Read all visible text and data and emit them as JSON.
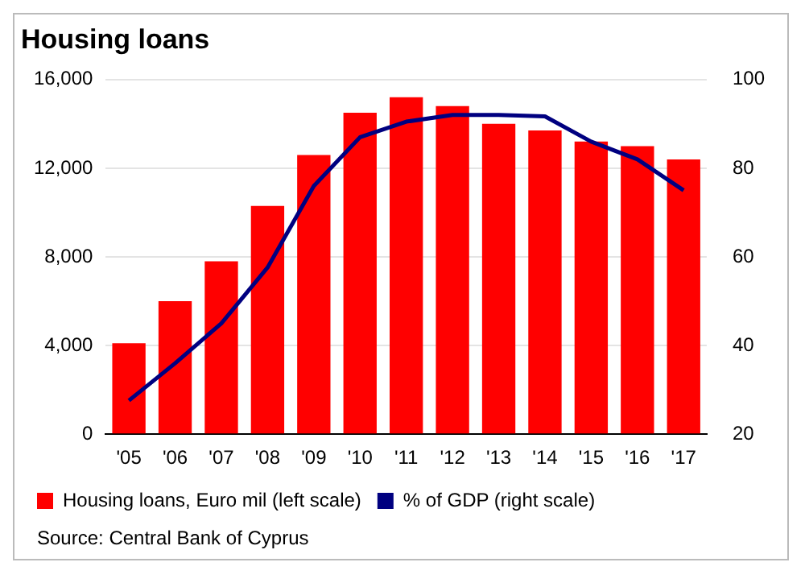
{
  "chart_data": {
    "type": "bar",
    "title": "Housing loans",
    "categories": [
      "'05",
      "'06",
      "'07",
      "'08",
      "'09",
      "'10",
      "'11",
      "'12",
      "'13",
      "'14",
      "'15",
      "'16",
      "'17"
    ],
    "series": [
      {
        "name": "Housing loans, Euro mil (left scale)",
        "color": "#ff0000",
        "values": [
          4100,
          6000,
          7800,
          10300,
          12600,
          14500,
          15200,
          14800,
          14000,
          13700,
          13200,
          13000,
          12400
        ]
      },
      {
        "name": "% of GDP (right scale)",
        "type": "line",
        "axis": "y2",
        "color": "#000080",
        "values": [
          27.6,
          36,
          45,
          57.6,
          76,
          87,
          90.5,
          92,
          92,
          91.7,
          86,
          82,
          75
        ]
      }
    ],
    "ylim": [
      0,
      16000
    ],
    "yticks": [
      {
        "value": 0,
        "label": "0"
      },
      {
        "value": 4000,
        "label": "4,000"
      },
      {
        "value": 8000,
        "label": "8,000"
      },
      {
        "value": 12000,
        "label": "12,000"
      },
      {
        "value": 16000,
        "label": "16,000"
      }
    ],
    "y2lim": [
      20,
      100
    ],
    "y2ticks": [
      20,
      40,
      60,
      80,
      100
    ],
    "grid": "y",
    "legend": "bottom",
    "marker": "none",
    "annotations": [
      "Source: Central Bank of Cyprus"
    ]
  }
}
